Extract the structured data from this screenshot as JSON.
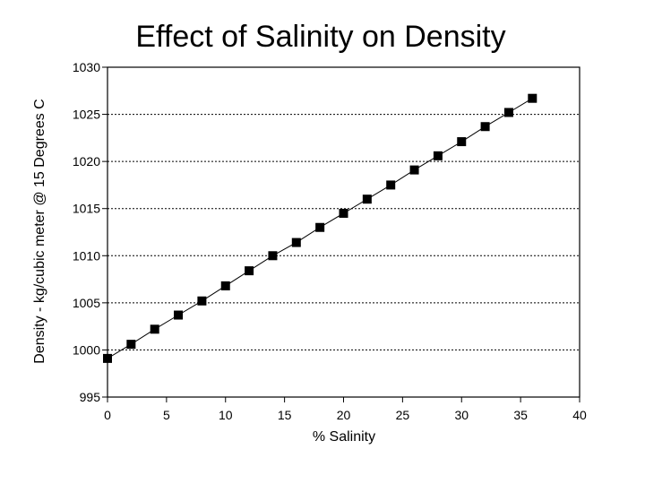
{
  "chart_data": {
    "type": "line",
    "title": "Effect of Salinity on Density",
    "xlabel": "% Salinity",
    "ylabel": "Density - kg/cubic meter @ 15 Degrees C",
    "xlim": [
      0,
      40
    ],
    "ylim": [
      995,
      1030
    ],
    "x_ticks": [
      0,
      5,
      10,
      15,
      20,
      25,
      30,
      35,
      40
    ],
    "y_ticks": [
      995,
      1000,
      1005,
      1010,
      1015,
      1020,
      1025,
      1030
    ],
    "grid": "horizontal dotted",
    "series": [
      {
        "marker": "square",
        "color": "#000000",
        "x": [
          0,
          2,
          4,
          6,
          8,
          10,
          12,
          14,
          16,
          18,
          20,
          22,
          24,
          26,
          28,
          30,
          32,
          34,
          36
        ],
        "y": [
          999.1,
          1000.6,
          1002.2,
          1003.7,
          1005.2,
          1006.8,
          1008.4,
          1010.0,
          1011.4,
          1013.0,
          1014.5,
          1016.0,
          1017.5,
          1019.1,
          1020.6,
          1022.1,
          1023.7,
          1025.2,
          1026.7
        ]
      }
    ]
  }
}
